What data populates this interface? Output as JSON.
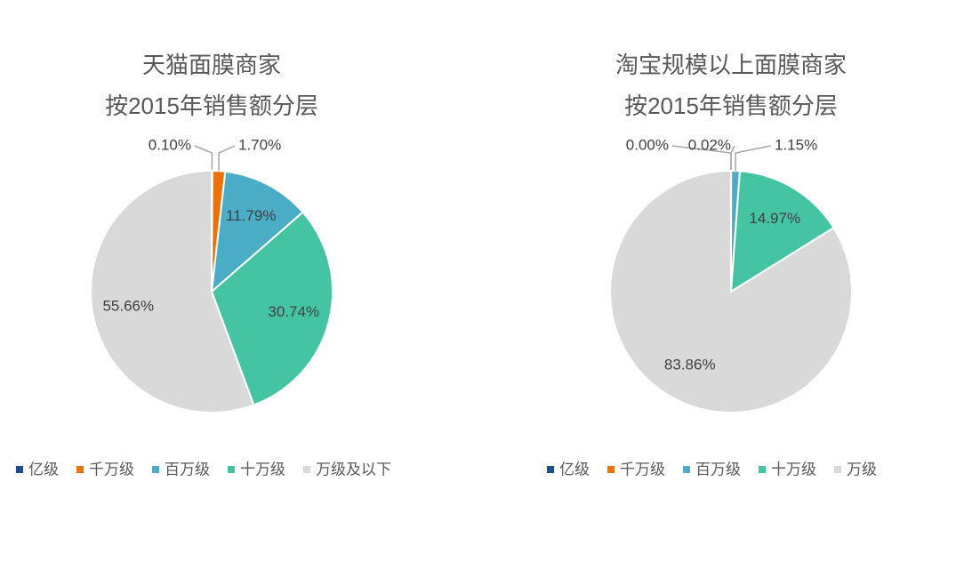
{
  "chart_data": [
    {
      "type": "pie",
      "title": [
        "天猫面膜商家",
        "按2015年销售额分层"
      ],
      "categories": [
        "亿级",
        "千万级",
        "百万级",
        "十万级",
        "万级及以下"
      ],
      "values": [
        0.1,
        1.7,
        11.79,
        30.74,
        55.66
      ],
      "value_labels": [
        "0.10%",
        "1.70%",
        "11.79%",
        "30.74%",
        "55.66%"
      ],
      "colors": [
        "#1f4e8c",
        "#e8730c",
        "#4bacc6",
        "#45c4a4",
        "#d9d9d9"
      ],
      "legend": "bottom"
    },
    {
      "type": "pie",
      "title": [
        "淘宝规模以上面膜商家",
        "按2015年销售额分层"
      ],
      "categories": [
        "亿级",
        "千万级",
        "百万级",
        "十万级",
        "万级"
      ],
      "values": [
        0.0,
        0.02,
        1.15,
        14.97,
        83.86
      ],
      "value_labels": [
        "0.00%",
        "0.02%",
        "1.15%",
        "14.97%",
        "83.86%"
      ],
      "colors": [
        "#1f4e8c",
        "#e8730c",
        "#4bacc6",
        "#45c4a4",
        "#d9d9d9"
      ],
      "legend": "bottom"
    }
  ]
}
